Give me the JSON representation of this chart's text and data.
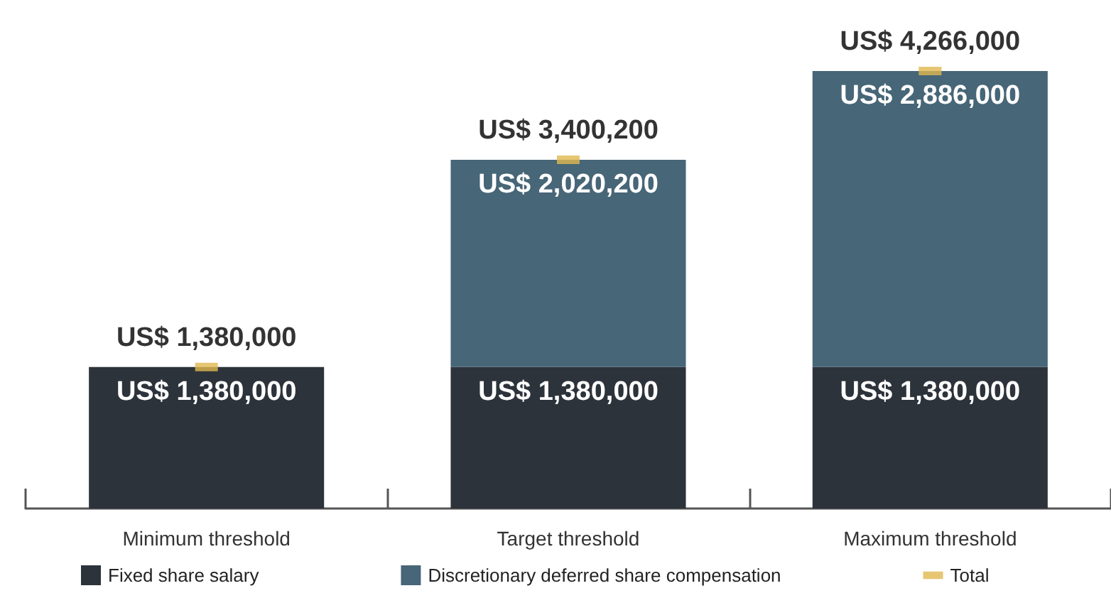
{
  "chart_data": {
    "type": "bar",
    "stacked": true,
    "categories": [
      "Minimum threshold",
      "Target threshold",
      "Maximum threshold"
    ],
    "series": [
      {
        "name": "Fixed share salary",
        "color": "#2d333b",
        "values": [
          1380000,
          1380000,
          1380000
        ],
        "value_labels": [
          "US$ 1,380,000",
          "US$ 1,380,000",
          "US$ 1,380,000"
        ]
      },
      {
        "name": "Discretionary deferred share compensation",
        "color": "#476677",
        "values": [
          null,
          2020200,
          2886000
        ],
        "value_labels": [
          null,
          "US$ 2,020,200",
          "US$ 2,886,000"
        ]
      },
      {
        "name": "Total",
        "type": "scatter",
        "color": "#e0b84f",
        "x": [
          "Minimum threshold",
          "Target threshold",
          "Maximum threshold"
        ],
        "values": [
          1380000,
          3400200,
          4266000
        ],
        "value_labels": [
          "US$ 1,380,000",
          "US$ 3,400,200",
          "US$ 4,266,000"
        ]
      }
    ],
    "legend": "bottom"
  }
}
